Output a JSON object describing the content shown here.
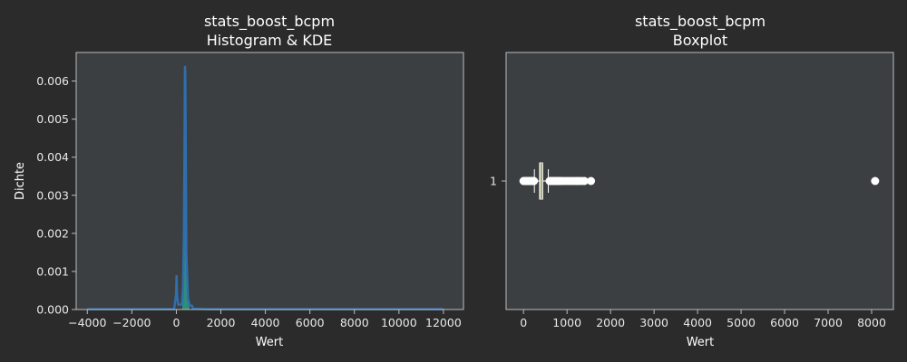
{
  "colors": {
    "figure_bg": "#2b2b2b",
    "axes_bg": "#3b3f42",
    "spine": "#bdbdbd",
    "text": "#ffffff",
    "hist_bar": "#2ca88a",
    "kde_line": "#2f6fae",
    "box_fill": "#f3f7b5",
    "box_edge": "#ffffff",
    "flier": "#ffffff"
  },
  "chart_data": [
    {
      "type": "bar",
      "title": "stats_boost_bcpm",
      "subtitle": "Histogram & KDE",
      "xlabel": "Wert",
      "ylabel": "Dichte",
      "xlim": [
        -4500,
        12900
      ],
      "ylim": [
        0,
        0.00675
      ],
      "xticks": [
        -4000,
        -2000,
        0,
        2000,
        4000,
        6000,
        8000,
        10000,
        12000
      ],
      "xtick_labels": [
        "−4000",
        "−2000",
        "0",
        "2000",
        "4000",
        "6000",
        "8000",
        "10000",
        "12000"
      ],
      "yticks": [
        0,
        0.001,
        0.002,
        0.003,
        0.004,
        0.005,
        0.006
      ],
      "ytick_labels": [
        "0.000",
        "0.001",
        "0.002",
        "0.003",
        "0.004",
        "0.005",
        "0.006"
      ],
      "grid": false,
      "histogram": {
        "bins": [
          {
            "x0": 260,
            "x1": 300,
            "value": 0.0004
          },
          {
            "x0": 300,
            "x1": 340,
            "value": 0.0012
          },
          {
            "x0": 340,
            "x1": 380,
            "value": 0.0035
          },
          {
            "x0": 380,
            "x1": 420,
            "value": 0.0031
          },
          {
            "x0": 420,
            "x1": 460,
            "value": 0.0016
          },
          {
            "x0": 460,
            "x1": 500,
            "value": 0.0007
          },
          {
            "x0": 500,
            "x1": 540,
            "value": 0.0003
          },
          {
            "x0": 540,
            "x1": 580,
            "value": 0.0001
          }
        ]
      },
      "kde": {
        "x": [
          -4000,
          -100,
          -10,
          10,
          30,
          80,
          150,
          250,
          300,
          340,
          370,
          380,
          390,
          400,
          410,
          420,
          450,
          520,
          600,
          700,
          760,
          1500,
          5000,
          12000
        ],
        "y": [
          1e-05,
          1e-05,
          0.0004,
          0.0009,
          0.0004,
          0.00013,
          0.00012,
          0.00015,
          0.0006,
          0.002,
          0.0045,
          0.0058,
          0.0064,
          0.0062,
          0.0055,
          0.0045,
          0.0015,
          0.0003,
          0.00011,
          0.0001,
          2e-05,
          1e-05,
          1e-05,
          1e-05
        ]
      }
    },
    {
      "type": "boxplot",
      "title": "stats_boost_bcpm",
      "subtitle": "Boxplot",
      "xlabel": "Wert",
      "xlim": [
        -400,
        8500
      ],
      "xticks": [
        0,
        1000,
        2000,
        3000,
        4000,
        5000,
        6000,
        7000,
        8000
      ],
      "xtick_labels": [
        "0",
        "1000",
        "2000",
        "3000",
        "4000",
        "5000",
        "6000",
        "7000",
        "8000"
      ],
      "yticks": [
        1
      ],
      "ytick_labels": [
        "1"
      ],
      "grid": false,
      "box": {
        "whisker_low": 250,
        "q1": 370,
        "median": 410,
        "q3": 440,
        "whisker_high": 570
      },
      "fliers": [
        0,
        10,
        20,
        30,
        40,
        50,
        60,
        70,
        80,
        90,
        100,
        110,
        120,
        130,
        140,
        150,
        160,
        170,
        180,
        190,
        200,
        210,
        220,
        230,
        240,
        600,
        620,
        640,
        660,
        680,
        700,
        720,
        740,
        760,
        780,
        800,
        830,
        860,
        900,
        950,
        1000,
        1050,
        1100,
        1150,
        1200,
        1250,
        1300,
        1350,
        1400,
        1550,
        8080
      ]
    }
  ]
}
